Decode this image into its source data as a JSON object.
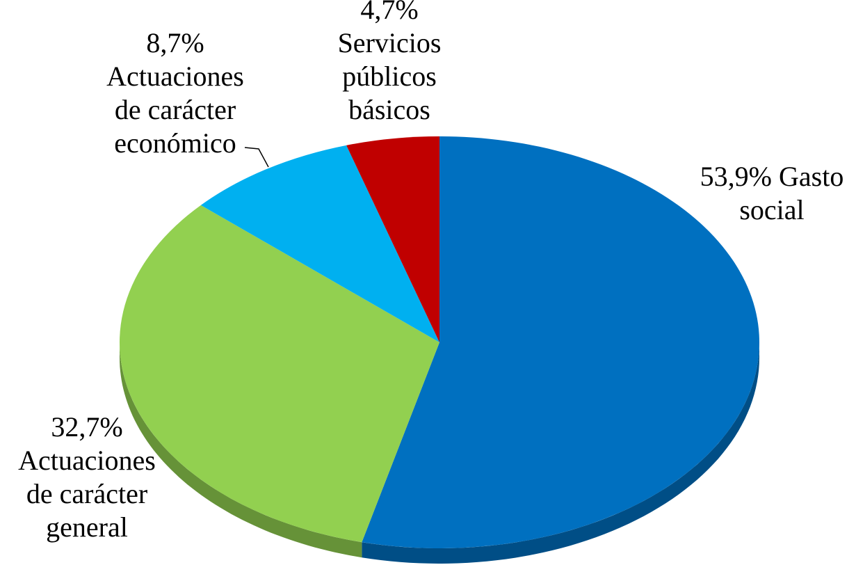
{
  "chart_data": {
    "type": "pie",
    "categories": [
      "Gasto social",
      "Actuaciones de carácter general",
      "Actuaciones de carácter económico",
      "Servicios públicos básicos"
    ],
    "values": [
      53.9,
      32.7,
      8.7,
      4.7
    ],
    "value_labels": [
      "53,9%",
      "32,7%",
      "8,7%",
      "4,7%"
    ],
    "colors": [
      "#0070c0",
      "#92d050",
      "#00b0f0",
      "#c00000"
    ]
  }
}
